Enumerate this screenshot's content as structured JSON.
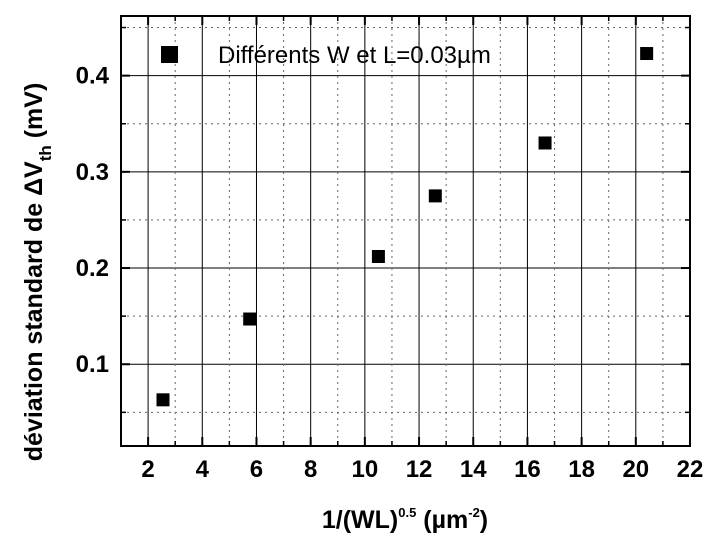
{
  "chart_data": {
    "type": "scatter",
    "xlabel": {
      "main": "1/(WL)",
      "sup": "0.5",
      "units": " (µm",
      "units_sup": "-2",
      "close": ")"
    },
    "ylabel": {
      "main": "déviation standard de ΔV",
      "sub": "th",
      "units": " (mV)"
    },
    "xlim": [
      1,
      22
    ],
    "ylim": [
      0.015,
      0.462
    ],
    "xticks": [
      2,
      4,
      6,
      8,
      10,
      12,
      14,
      16,
      18,
      20,
      22
    ],
    "xtick_labels": [
      "2",
      "4",
      "6",
      "8",
      "10",
      "12",
      "14",
      "16",
      "18",
      "20",
      "22"
    ],
    "yticks": [
      0.1,
      0.2,
      0.3,
      0.4
    ],
    "ytick_labels": [
      "0.1",
      "0.2",
      "0.3",
      "0.4"
    ],
    "grid": true,
    "legend_position": "top-left",
    "series": [
      {
        "name": "Différents W et L=0.03µm",
        "marker": "square",
        "color": "#000000",
        "x": [
          2.55,
          5.75,
          10.5,
          12.6,
          16.65,
          20.4
        ],
        "y": [
          0.063,
          0.147,
          0.212,
          0.275,
          0.33,
          0.423
        ]
      }
    ]
  }
}
